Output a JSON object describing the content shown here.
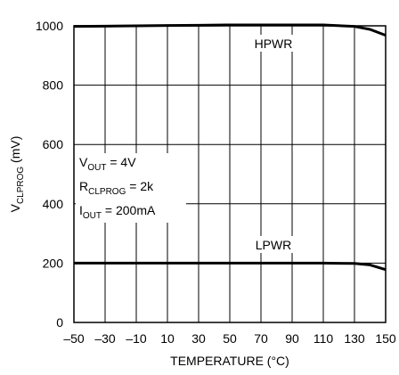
{
  "chart_data": {
    "type": "line",
    "xlabel": "TEMPERATURE (°C)",
    "ylabel": {
      "main": "V",
      "sub": "CLPROG",
      "rest": " (mV)"
    },
    "x": [
      -50,
      -30,
      -10,
      10,
      30,
      50,
      70,
      90,
      110,
      130,
      140,
      150
    ],
    "series": [
      {
        "name": "HPWR",
        "color": "#000000",
        "values": [
          998,
          999,
          1000,
          1001,
          1002,
          1003,
          1003,
          1003,
          1003,
          998,
          988,
          968
        ]
      },
      {
        "name": "LPWR",
        "color": "#000000",
        "values": [
          200,
          200,
          200,
          200,
          200,
          200,
          200,
          200,
          200,
          199,
          194,
          178
        ]
      }
    ],
    "conditions": [
      {
        "main": "V",
        "sub": "OUT",
        "rest": " = 4V"
      },
      {
        "main": "R",
        "sub": "CLPROG",
        "rest": " = 2k"
      },
      {
        "main": "I",
        "sub": "OUT",
        "rest": " = 200mA"
      }
    ],
    "xlim": [
      -50,
      150
    ],
    "xticks": [
      {
        "value": -50,
        "label": "–50"
      },
      {
        "value": -30,
        "label": "–30"
      },
      {
        "value": -10,
        "label": "–10"
      },
      10,
      30,
      50,
      70,
      90,
      110,
      130,
      150
    ],
    "ylim": [
      0,
      1000
    ],
    "yticks": [
      0,
      200,
      400,
      600,
      800,
      1000
    ],
    "grid": true
  }
}
